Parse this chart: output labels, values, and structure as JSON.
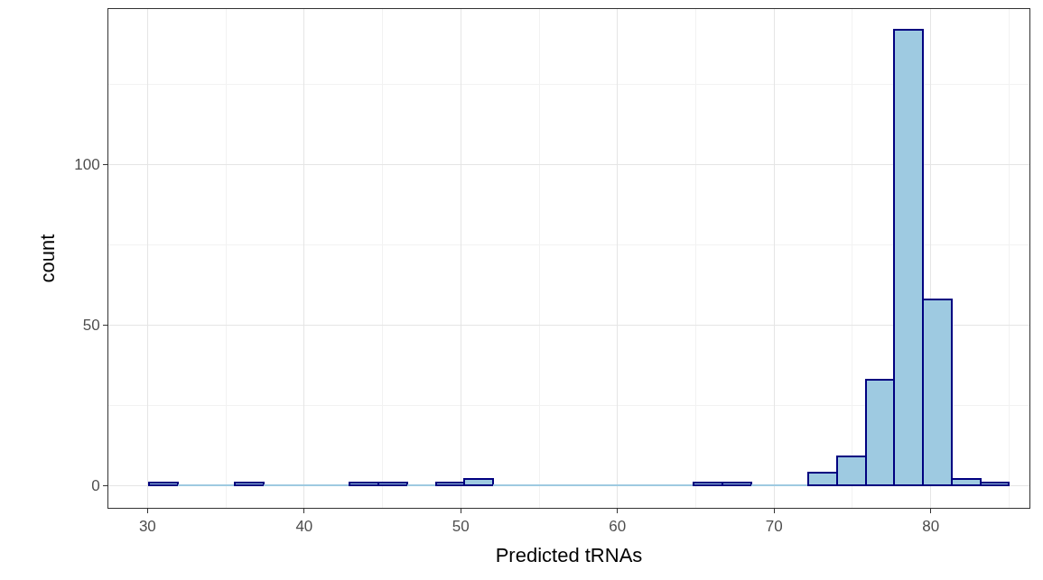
{
  "chart_data": {
    "type": "histogram",
    "xlabel": "Predicted tRNAs",
    "ylabel": "count",
    "bins": [
      30.1,
      31.93,
      33.76,
      35.59,
      37.42,
      39.25,
      41.08,
      42.91,
      44.74,
      46.57,
      48.4,
      50.23,
      52.06,
      53.89,
      55.72,
      57.55,
      59.38,
      61.21,
      63.04,
      64.87,
      66.7,
      68.53,
      70.36,
      72.19,
      74.02,
      75.85,
      77.68,
      79.51,
      81.34,
      83.17,
      85.0
    ],
    "values": [
      1,
      0,
      0,
      1,
      0,
      0,
      0,
      1,
      1,
      0,
      1,
      2,
      0,
      0,
      0,
      0,
      0,
      0,
      0,
      1,
      1,
      0,
      0,
      4,
      9,
      33,
      142,
      58,
      2,
      1
    ],
    "color": "#9ecae1",
    "xlim": [
      27.5,
      86.3
    ],
    "ylim": [
      -7,
      148.4
    ],
    "xticks": [
      30,
      40,
      50,
      60,
      70,
      80
    ],
    "yticks": [
      0,
      50,
      100
    ],
    "grid": true
  }
}
